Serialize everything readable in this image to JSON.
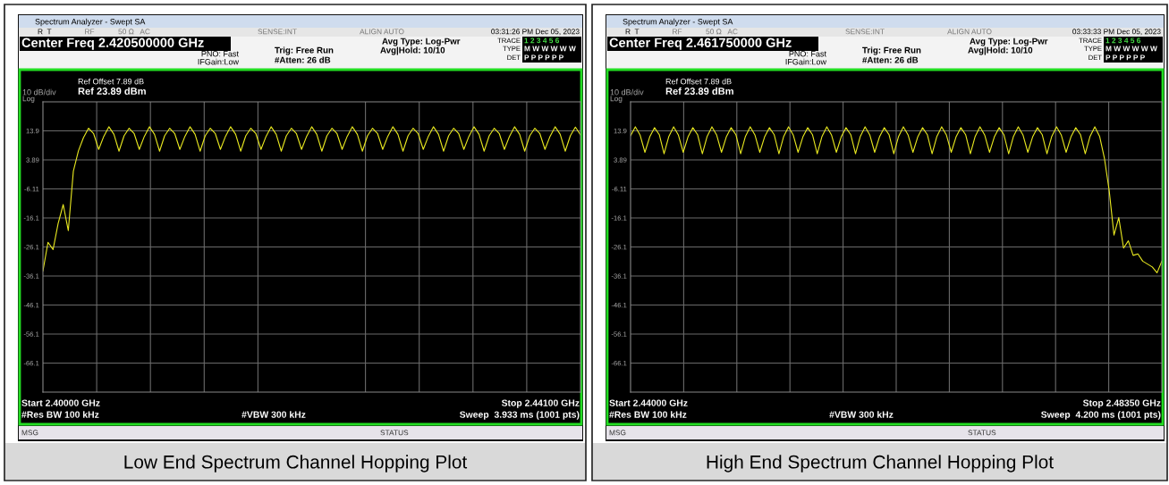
{
  "chart_data": [
    {
      "type": "line",
      "title": "Low End Spectrum Channel Hopping Plot",
      "annotations": [
        "Spectrum Analyzer - Swept SA",
        "R  T",
        "RF",
        "50 Ω   AC",
        "SENSE:INT",
        "ALIGN AUTO",
        "03:31:26 PM Dec 05, 2023",
        "Center Freq 2.420500000 GHz",
        "PNO: Fast",
        "IFGain:Low",
        "Trig: Free Run",
        "#Atten: 26 dB",
        "Avg Type: Log-Pwr",
        "Avg|Hold: 10/10",
        "TRACE",
        "TYPE",
        "DET",
        "1 2 3 4 5 6",
        "M W W W W W",
        "P P P P P P",
        "Ref Offset 7.89 dB",
        "Ref 23.89 dBm",
        "10 dB/div",
        "Log",
        "#Res BW 100 kHz",
        "#VBW 300 kHz",
        "Sweep  3.933 ms (1001 pts)",
        "MSG",
        "STATUS",
        "Start 2.40000 GHz",
        "Stop 2.44100 GHz"
      ],
      "categories": [
        null,
        null,
        null,
        null,
        null,
        null,
        null,
        null,
        null,
        null,
        null,
        null,
        null,
        null,
        null,
        null,
        null,
        null,
        null,
        null,
        null,
        null,
        null,
        null,
        null,
        null,
        null,
        null,
        null,
        null,
        null,
        null,
        null,
        null,
        null,
        null,
        null,
        null,
        null,
        null,
        null,
        null,
        null,
        null,
        null,
        null,
        null,
        null,
        null,
        null,
        null,
        null,
        null,
        null,
        null,
        null,
        null,
        null,
        null,
        null,
        null,
        null,
        null,
        null,
        null,
        null,
        null,
        null,
        null,
        null,
        null,
        null,
        null,
        null,
        null,
        null,
        null,
        null,
        null,
        null,
        null,
        null,
        null,
        null,
        null,
        null,
        null,
        null,
        null,
        null,
        null,
        null,
        null,
        null,
        null,
        null,
        null,
        null,
        null,
        null,
        null,
        null,
        null,
        null,
        null,
        null,
        null
      ],
      "series": [
        {
          "color": "#e8e820",
          "values": [
            -34.4,
            -24.5,
            -27,
            -18,
            -11.5,
            -20.5,
            0,
            7,
            11.6,
            14.8,
            12.9,
            7.5,
            12.0,
            15.3,
            12.7,
            6.9,
            12.2,
            14.8,
            12.9,
            7.5,
            12.0,
            15.3,
            12.7,
            6.9,
            12.2,
            14.8,
            12.9,
            7.5,
            12.0,
            15.3,
            12.7,
            6.9,
            12.2,
            14.8,
            12.9,
            7.5,
            12.0,
            15.3,
            12.7,
            6.9,
            12.2,
            14.8,
            12.9,
            7.5,
            12.0,
            15.3,
            12.7,
            6.9,
            12.2,
            14.8,
            12.9,
            7.5,
            12.0,
            15.3,
            12.7,
            6.9,
            12.2,
            14.8,
            12.9,
            7.5,
            12.0,
            15.3,
            12.7,
            6.9,
            12.2,
            14.8,
            12.9,
            7.5,
            12.0,
            15.3,
            12.7,
            6.9,
            12.2,
            14.8,
            12.9,
            7.5,
            12.0,
            15.3,
            12.7,
            6.9,
            12.2,
            14.8,
            12.9,
            7.5,
            12.0,
            15.3,
            12.7,
            6.9,
            12.2,
            14.8,
            12.9,
            7.5,
            12.0,
            15.3,
            12.7,
            6.9,
            12.2,
            14.8,
            12.9,
            7.5,
            12.0,
            15.3,
            12.7,
            6.9,
            12.2,
            15.2,
            12.5
          ]
        }
      ],
      "ylim": [
        -76.11,
        23.89
      ],
      "yticks": [
        13.9,
        3.89,
        -6.11,
        -16.1,
        -26.1,
        -36.1,
        -46.1,
        -56.1,
        -66.1
      ],
      "grid": true
    },
    {
      "type": "line",
      "title": "High End Spectrum Channel Hopping Plot",
      "annotations": [
        "Spectrum Analyzer - Swept SA",
        "R  T",
        "RF",
        "50 Ω   AC",
        "SENSE:INT",
        "ALIGN AUTO",
        "03:33:33 PM Dec 05, 2023",
        "Center Freq 2.461750000 GHz",
        "PNO: Fast",
        "IFGain:Low",
        "Trig: Free Run",
        "#Atten: 26 dB",
        "Avg Type: Log-Pwr",
        "Avg|Hold: 10/10",
        "TRACE",
        "TYPE",
        "DET",
        "1 2 3 4 5 6",
        "M W W W W W",
        "P P P P P P",
        "Ref Offset 7.89 dB",
        "Ref 23.89 dBm",
        "10 dB/div",
        "Log",
        "#Res BW 100 kHz",
        "#VBW 300 kHz",
        "Sweep  4.200 ms (1001 pts)",
        "MSG",
        "STATUS",
        "Start 2.44000 GHz",
        "Stop 2.48350 GHz"
      ],
      "categories": [
        null,
        null,
        null,
        null,
        null,
        null,
        null,
        null,
        null,
        null,
        null,
        null,
        null,
        null,
        null,
        null,
        null,
        null,
        null,
        null,
        null,
        null,
        null,
        null,
        null,
        null,
        null,
        null,
        null,
        null,
        null,
        null,
        null,
        null,
        null,
        null,
        null,
        null,
        null,
        null,
        null,
        null,
        null,
        null,
        null,
        null,
        null,
        null,
        null,
        null,
        null,
        null,
        null,
        null,
        null,
        null,
        null,
        null,
        null,
        null,
        null,
        null,
        null,
        null,
        null,
        null,
        null,
        null,
        null,
        null,
        null,
        null,
        null,
        null,
        null,
        null,
        null,
        null,
        null,
        null,
        null,
        null,
        null,
        null,
        null,
        null,
        null,
        null,
        null,
        null,
        null,
        null,
        null,
        null,
        null,
        null,
        null,
        null,
        null,
        null,
        null,
        null,
        null,
        null,
        null,
        null,
        null,
        null,
        null,
        null,
        null,
        null
      ],
      "series": [
        {
          "color": "#e8e820",
          "values": [
            12.2,
            15.3,
            12.4,
            6.5,
            11.8,
            15.0,
            12.6,
            6.0,
            12.0,
            15.3,
            12.4,
            6.5,
            11.8,
            15.0,
            12.6,
            6.0,
            12.0,
            15.3,
            12.4,
            6.5,
            11.8,
            15.0,
            12.6,
            6.0,
            12.0,
            15.3,
            12.4,
            6.5,
            11.8,
            15.0,
            12.6,
            6.0,
            12.0,
            15.3,
            12.4,
            6.5,
            11.8,
            15.0,
            12.6,
            6.0,
            12.0,
            15.3,
            12.4,
            6.5,
            11.8,
            15.0,
            12.6,
            6.0,
            12.0,
            15.3,
            12.4,
            6.5,
            11.8,
            15.0,
            12.6,
            6.0,
            12.0,
            15.3,
            12.4,
            6.5,
            11.8,
            15.0,
            12.6,
            6.0,
            12.0,
            15.3,
            12.4,
            6.5,
            11.8,
            15.0,
            12.6,
            6.0,
            12.0,
            15.3,
            12.4,
            6.5,
            11.8,
            15.0,
            12.6,
            6.0,
            12.0,
            15.3,
            12.4,
            6.5,
            11.8,
            15.0,
            12.6,
            6.0,
            12.0,
            15.3,
            12.4,
            6.5,
            11.8,
            15.0,
            12.6,
            6.0,
            12.0,
            15.3,
            12,
            4.5,
            -6.7,
            -22,
            -16,
            -26.5,
            -24,
            -29,
            -28.5,
            -31,
            -32,
            -33,
            -35,
            -31
          ]
        }
      ],
      "ylim": [
        -76.11,
        23.89
      ],
      "yticks": [
        13.9,
        3.89,
        -6.11,
        -16.1,
        -26.1,
        -36.1,
        -46.1,
        -56.1,
        -66.1
      ],
      "grid": true
    }
  ]
}
